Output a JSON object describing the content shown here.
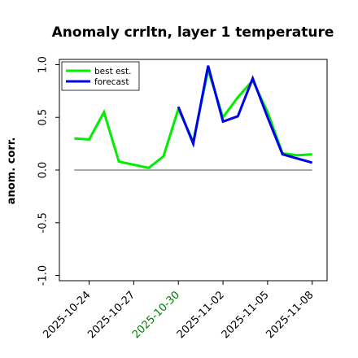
{
  "chart_data": {
    "type": "line",
    "title": "Anomaly crrltn, layer 1 temperature",
    "ylabel": "anom. corr.",
    "xlabel": "",
    "ylim": [
      -1.05,
      1.05
    ],
    "yticks": [
      -1.0,
      -0.5,
      0.0,
      0.5,
      1.0
    ],
    "ytick_labels": [
      "-1.0",
      "-0.5",
      "0.0",
      "0.5",
      "1.0"
    ],
    "x": [
      "2025-10-23",
      "2025-10-24",
      "2025-10-25",
      "2025-10-26",
      "2025-10-27",
      "2025-10-28",
      "2025-10-29",
      "2025-10-30",
      "2025-10-31",
      "2025-11-01",
      "2025-11-02",
      "2025-11-03",
      "2025-11-04",
      "2025-11-05",
      "2025-11-06",
      "2025-11-07",
      "2025-11-08"
    ],
    "xlim": [
      "2025-10-22",
      "2025-11-09"
    ],
    "xticks": [
      "2025-10-24",
      "2025-10-27",
      "2025-10-30",
      "2025-11-02",
      "2025-11-05",
      "2025-11-08"
    ],
    "xtick_labels": [
      "2025-10-24",
      "2025-10-27",
      "2025-10-30",
      "2025-11-02",
      "2025-11-05",
      "2025-11-08"
    ],
    "xtick_colors": [
      "#000000",
      "#000000",
      "#008000",
      "#000000",
      "#000000",
      "#000000"
    ],
    "series": [
      {
        "name": "best est.",
        "color": "#00ee00",
        "x": [
          "2025-10-23",
          "2025-10-24",
          "2025-10-25",
          "2025-10-26",
          "2025-10-28",
          "2025-10-29",
          "2025-10-30",
          "2025-10-31",
          "2025-11-01",
          "2025-11-02",
          "2025-11-03",
          "2025-11-04",
          "2025-11-05",
          "2025-11-06",
          "2025-11-07",
          "2025-11-08"
        ],
        "values": [
          0.3,
          0.29,
          0.55,
          0.08,
          0.02,
          0.13,
          0.58,
          0.27,
          0.95,
          0.5,
          0.69,
          0.85,
          0.55,
          0.16,
          0.14,
          0.15
        ]
      },
      {
        "name": "forecast",
        "color": "#0000ee",
        "x": [
          "2025-10-30",
          "2025-10-31",
          "2025-11-01",
          "2025-11-02",
          "2025-11-03",
          "2025-11-04",
          "2025-11-05",
          "2025-11-06",
          "2025-11-07",
          "2025-11-08"
        ],
        "values": [
          0.6,
          0.25,
          0.99,
          0.46,
          0.51,
          0.87,
          0.5,
          0.15,
          0.11,
          0.07
        ]
      }
    ],
    "zero_line": true,
    "grid": false,
    "legend_position": "upper-left"
  }
}
